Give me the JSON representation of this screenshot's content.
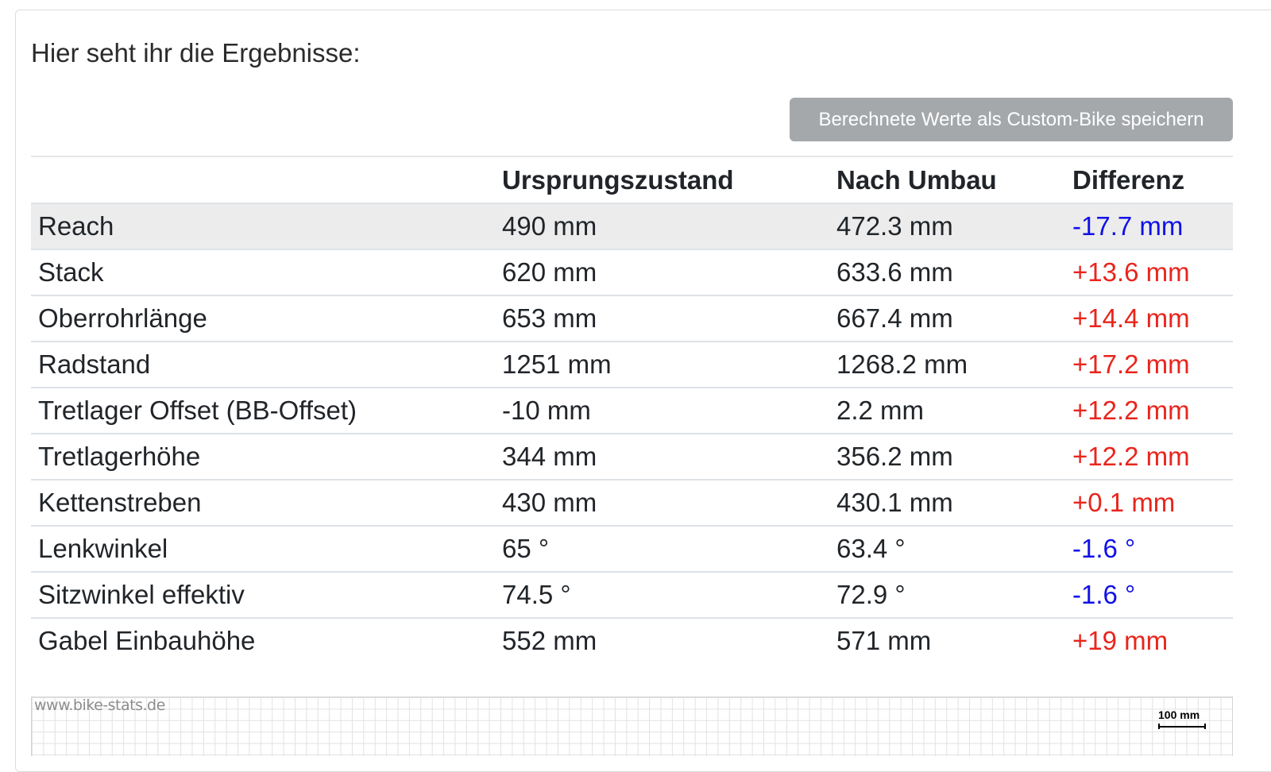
{
  "intro_text": "Hier seht ihr die Ergebnisse:",
  "save_button_label": "Berechnete Werte als Custom-Bike speichern",
  "table": {
    "headers": [
      "",
      "Ursprungszustand",
      "Nach Umbau",
      "Differenz"
    ],
    "rows": [
      {
        "label": "Reach",
        "original": "490 mm",
        "modified": "472.3 mm",
        "difference": "-17.7 mm",
        "sign": "negative"
      },
      {
        "label": "Stack",
        "original": "620 mm",
        "modified": "633.6 mm",
        "difference": "+13.6 mm",
        "sign": "positive"
      },
      {
        "label": "Oberrohrlänge",
        "original": "653 mm",
        "modified": "667.4 mm",
        "difference": "+14.4 mm",
        "sign": "positive"
      },
      {
        "label": "Radstand",
        "original": "1251 mm",
        "modified": "1268.2 mm",
        "difference": "+17.2 mm",
        "sign": "positive"
      },
      {
        "label": "Tretlager Offset (BB-Offset)",
        "original": "-10 mm",
        "modified": "2.2 mm",
        "difference": "+12.2 mm",
        "sign": "positive"
      },
      {
        "label": "Tretlagerhöhe",
        "original": "344 mm",
        "modified": "356.2 mm",
        "difference": "+12.2 mm",
        "sign": "positive"
      },
      {
        "label": "Kettenstreben",
        "original": "430 mm",
        "modified": "430.1 mm",
        "difference": "+0.1 mm",
        "sign": "positive"
      },
      {
        "label": "Lenkwinkel",
        "original": "65 °",
        "modified": "63.4 °",
        "difference": "-1.6 °",
        "sign": "negative"
      },
      {
        "label": "Sitzwinkel effektiv",
        "original": "74.5 °",
        "modified": "72.9 °",
        "difference": "-1.6 °",
        "sign": "negative"
      },
      {
        "label": "Gabel Einbauhöhe",
        "original": "552 mm",
        "modified": "571 mm",
        "difference": "+19 mm",
        "sign": "positive"
      }
    ]
  },
  "diagram": {
    "watermark": "www.bike-stats.de",
    "scale_label": "100 mm"
  },
  "colors": {
    "negative": "#1010e8",
    "positive": "#e8251d",
    "button_bg": "#a5a8ab"
  }
}
